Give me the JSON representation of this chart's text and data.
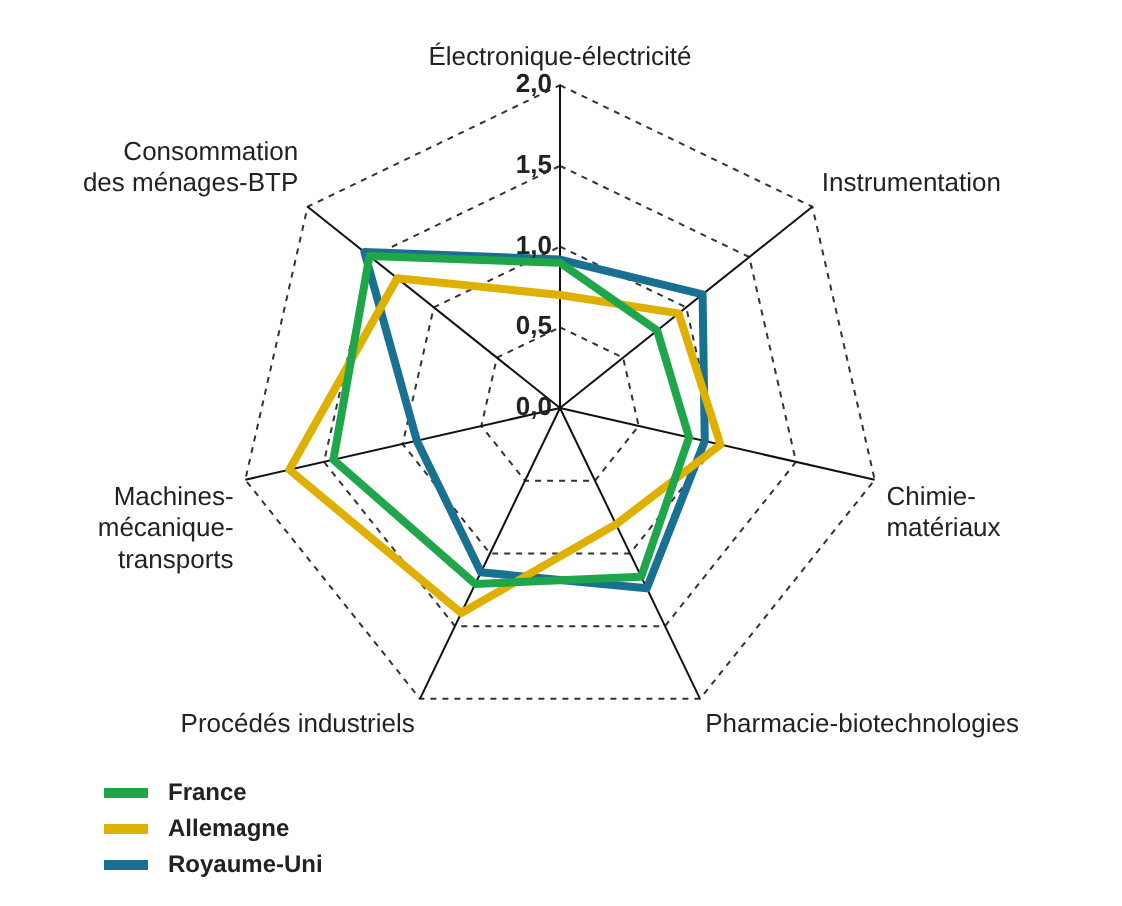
{
  "chart_data": {
    "type": "radar",
    "categories": [
      "Électronique-électricité",
      "Instrumentation",
      "Chimie-matériaux",
      "Pharmacie-biotechnologies",
      "Procédés industriels",
      "Machines-mécanique-transports",
      "Consommation des ménages-BTP"
    ],
    "series": [
      {
        "name": "France",
        "color": "#1fa64a",
        "values": [
          0.9,
          0.77,
          0.82,
          1.16,
          1.21,
          1.44,
          1.51
        ]
      },
      {
        "name": "Allemagne",
        "color": "#e0b000",
        "values": [
          0.7,
          0.94,
          1.02,
          0.8,
          1.41,
          1.72,
          1.29
        ]
      },
      {
        "name": "Royaume-Uni",
        "color": "#1a7090",
        "values": [
          0.92,
          1.13,
          0.92,
          1.24,
          1.13,
          0.91,
          1.55
        ]
      }
    ],
    "ylim": [
      0,
      2
    ],
    "yticks": [
      {
        "value": 0,
        "label": "0,0"
      },
      {
        "value": 0.5,
        "label": "0,5"
      },
      {
        "value": 1,
        "label": "1,0"
      },
      {
        "value": 1.5,
        "label": "1,5"
      },
      {
        "value": 2,
        "label": "2,0"
      }
    ],
    "grid": true,
    "legend": "bottom left",
    "marker": "none",
    "line_style": "solid"
  }
}
